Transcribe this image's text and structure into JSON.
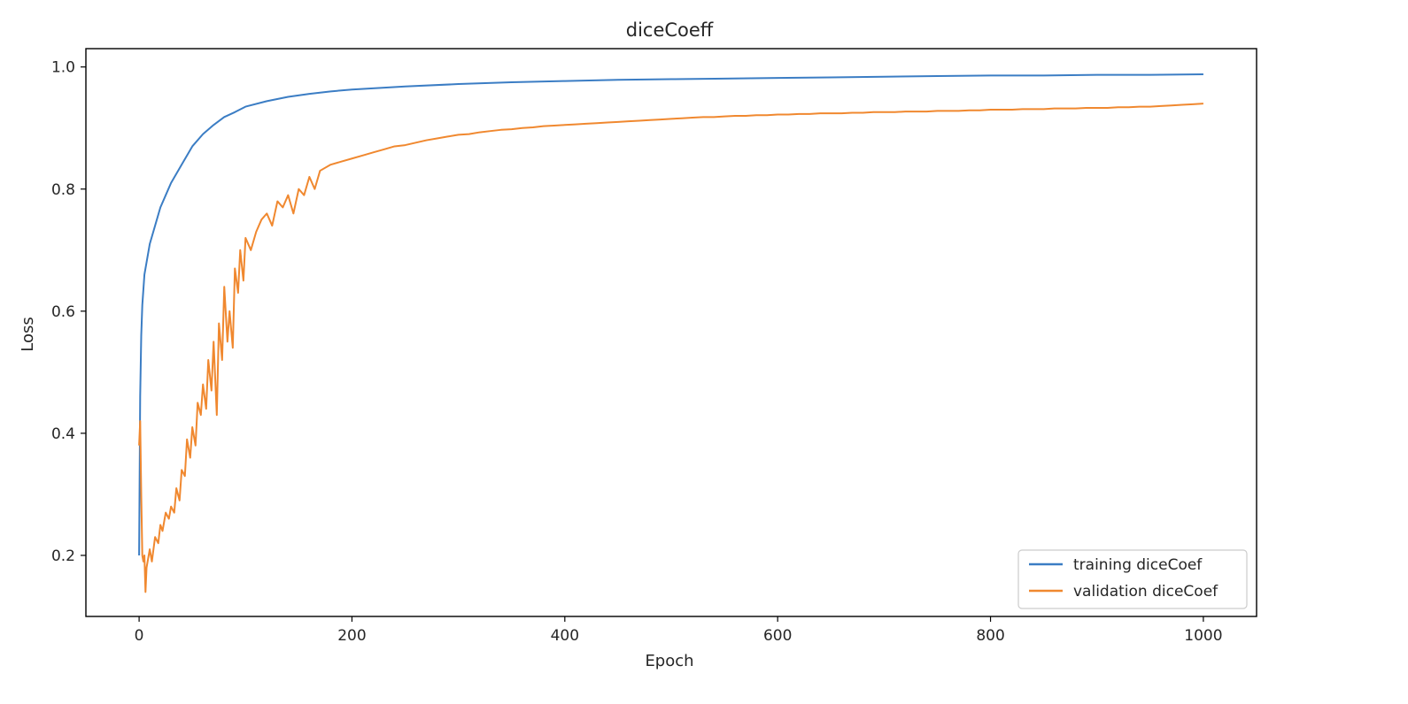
{
  "chart_data": {
    "type": "line",
    "title": "diceCoeff",
    "xlabel": "Epoch",
    "ylabel": "Loss",
    "xlim": [
      -50,
      1050
    ],
    "ylim": [
      0.1,
      1.03
    ],
    "xticks": [
      0,
      200,
      400,
      600,
      800,
      1000
    ],
    "yticks": [
      0.2,
      0.4,
      0.6,
      0.8,
      1.0
    ],
    "xtick_labels": [
      "0",
      "200",
      "400",
      "600",
      "800",
      "1000"
    ],
    "ytick_labels": [
      "0.2",
      "0.4",
      "0.6",
      "0.8",
      "1.0"
    ],
    "grid": false,
    "legend_position": "lower-right",
    "series": [
      {
        "name": "training diceCoef",
        "color": "#3b7dc4",
        "x": [
          0,
          1,
          2,
          3,
          5,
          8,
          10,
          15,
          20,
          25,
          30,
          40,
          50,
          60,
          70,
          80,
          90,
          100,
          120,
          140,
          160,
          180,
          200,
          250,
          300,
          350,
          400,
          450,
          500,
          550,
          600,
          650,
          700,
          750,
          800,
          850,
          900,
          950,
          1000
        ],
        "y": [
          0.2,
          0.46,
          0.56,
          0.61,
          0.66,
          0.69,
          0.71,
          0.74,
          0.77,
          0.79,
          0.81,
          0.84,
          0.87,
          0.89,
          0.905,
          0.918,
          0.926,
          0.935,
          0.944,
          0.951,
          0.956,
          0.96,
          0.963,
          0.968,
          0.972,
          0.975,
          0.977,
          0.979,
          0.98,
          0.981,
          0.982,
          0.983,
          0.984,
          0.985,
          0.986,
          0.986,
          0.987,
          0.987,
          0.988
        ]
      },
      {
        "name": "validation diceCoef",
        "color": "#f0882f",
        "x": [
          0,
          1,
          2,
          3,
          4,
          5,
          6,
          7,
          8,
          10,
          12,
          15,
          18,
          20,
          22,
          25,
          28,
          30,
          33,
          35,
          38,
          40,
          43,
          45,
          48,
          50,
          53,
          55,
          58,
          60,
          63,
          65,
          68,
          70,
          73,
          75,
          78,
          80,
          83,
          85,
          88,
          90,
          93,
          95,
          98,
          100,
          105,
          110,
          115,
          120,
          125,
          130,
          135,
          140,
          145,
          150,
          155,
          160,
          165,
          170,
          180,
          190,
          200,
          210,
          220,
          230,
          240,
          250,
          260,
          270,
          280,
          290,
          300,
          310,
          320,
          330,
          340,
          350,
          360,
          370,
          380,
          390,
          400,
          410,
          420,
          430,
          440,
          450,
          460,
          470,
          480,
          490,
          500,
          510,
          520,
          530,
          540,
          550,
          560,
          570,
          580,
          590,
          600,
          610,
          620,
          630,
          640,
          650,
          660,
          670,
          680,
          690,
          700,
          710,
          720,
          730,
          740,
          750,
          760,
          770,
          780,
          790,
          800,
          810,
          820,
          830,
          840,
          850,
          860,
          870,
          880,
          890,
          900,
          910,
          920,
          930,
          940,
          950,
          960,
          970,
          980,
          990,
          1000
        ],
        "y": [
          0.38,
          0.42,
          0.3,
          0.2,
          0.19,
          0.2,
          0.14,
          0.18,
          0.19,
          0.21,
          0.19,
          0.23,
          0.22,
          0.25,
          0.24,
          0.27,
          0.26,
          0.28,
          0.27,
          0.31,
          0.29,
          0.34,
          0.33,
          0.39,
          0.36,
          0.41,
          0.38,
          0.45,
          0.43,
          0.48,
          0.44,
          0.52,
          0.47,
          0.55,
          0.43,
          0.58,
          0.52,
          0.64,
          0.55,
          0.6,
          0.54,
          0.67,
          0.63,
          0.7,
          0.65,
          0.72,
          0.7,
          0.73,
          0.75,
          0.76,
          0.74,
          0.78,
          0.77,
          0.79,
          0.76,
          0.8,
          0.79,
          0.82,
          0.8,
          0.83,
          0.84,
          0.845,
          0.85,
          0.855,
          0.86,
          0.865,
          0.87,
          0.872,
          0.876,
          0.88,
          0.883,
          0.886,
          0.889,
          0.89,
          0.893,
          0.895,
          0.897,
          0.898,
          0.9,
          0.901,
          0.903,
          0.904,
          0.905,
          0.906,
          0.907,
          0.908,
          0.909,
          0.91,
          0.911,
          0.912,
          0.913,
          0.914,
          0.915,
          0.916,
          0.917,
          0.918,
          0.918,
          0.919,
          0.92,
          0.92,
          0.921,
          0.921,
          0.922,
          0.922,
          0.923,
          0.923,
          0.924,
          0.924,
          0.924,
          0.925,
          0.925,
          0.926,
          0.926,
          0.926,
          0.927,
          0.927,
          0.927,
          0.928,
          0.928,
          0.928,
          0.929,
          0.929,
          0.93,
          0.93,
          0.93,
          0.931,
          0.931,
          0.931,
          0.932,
          0.932,
          0.932,
          0.933,
          0.933,
          0.933,
          0.934,
          0.934,
          0.935,
          0.935,
          0.936,
          0.937,
          0.938,
          0.939,
          0.94
        ]
      }
    ]
  }
}
